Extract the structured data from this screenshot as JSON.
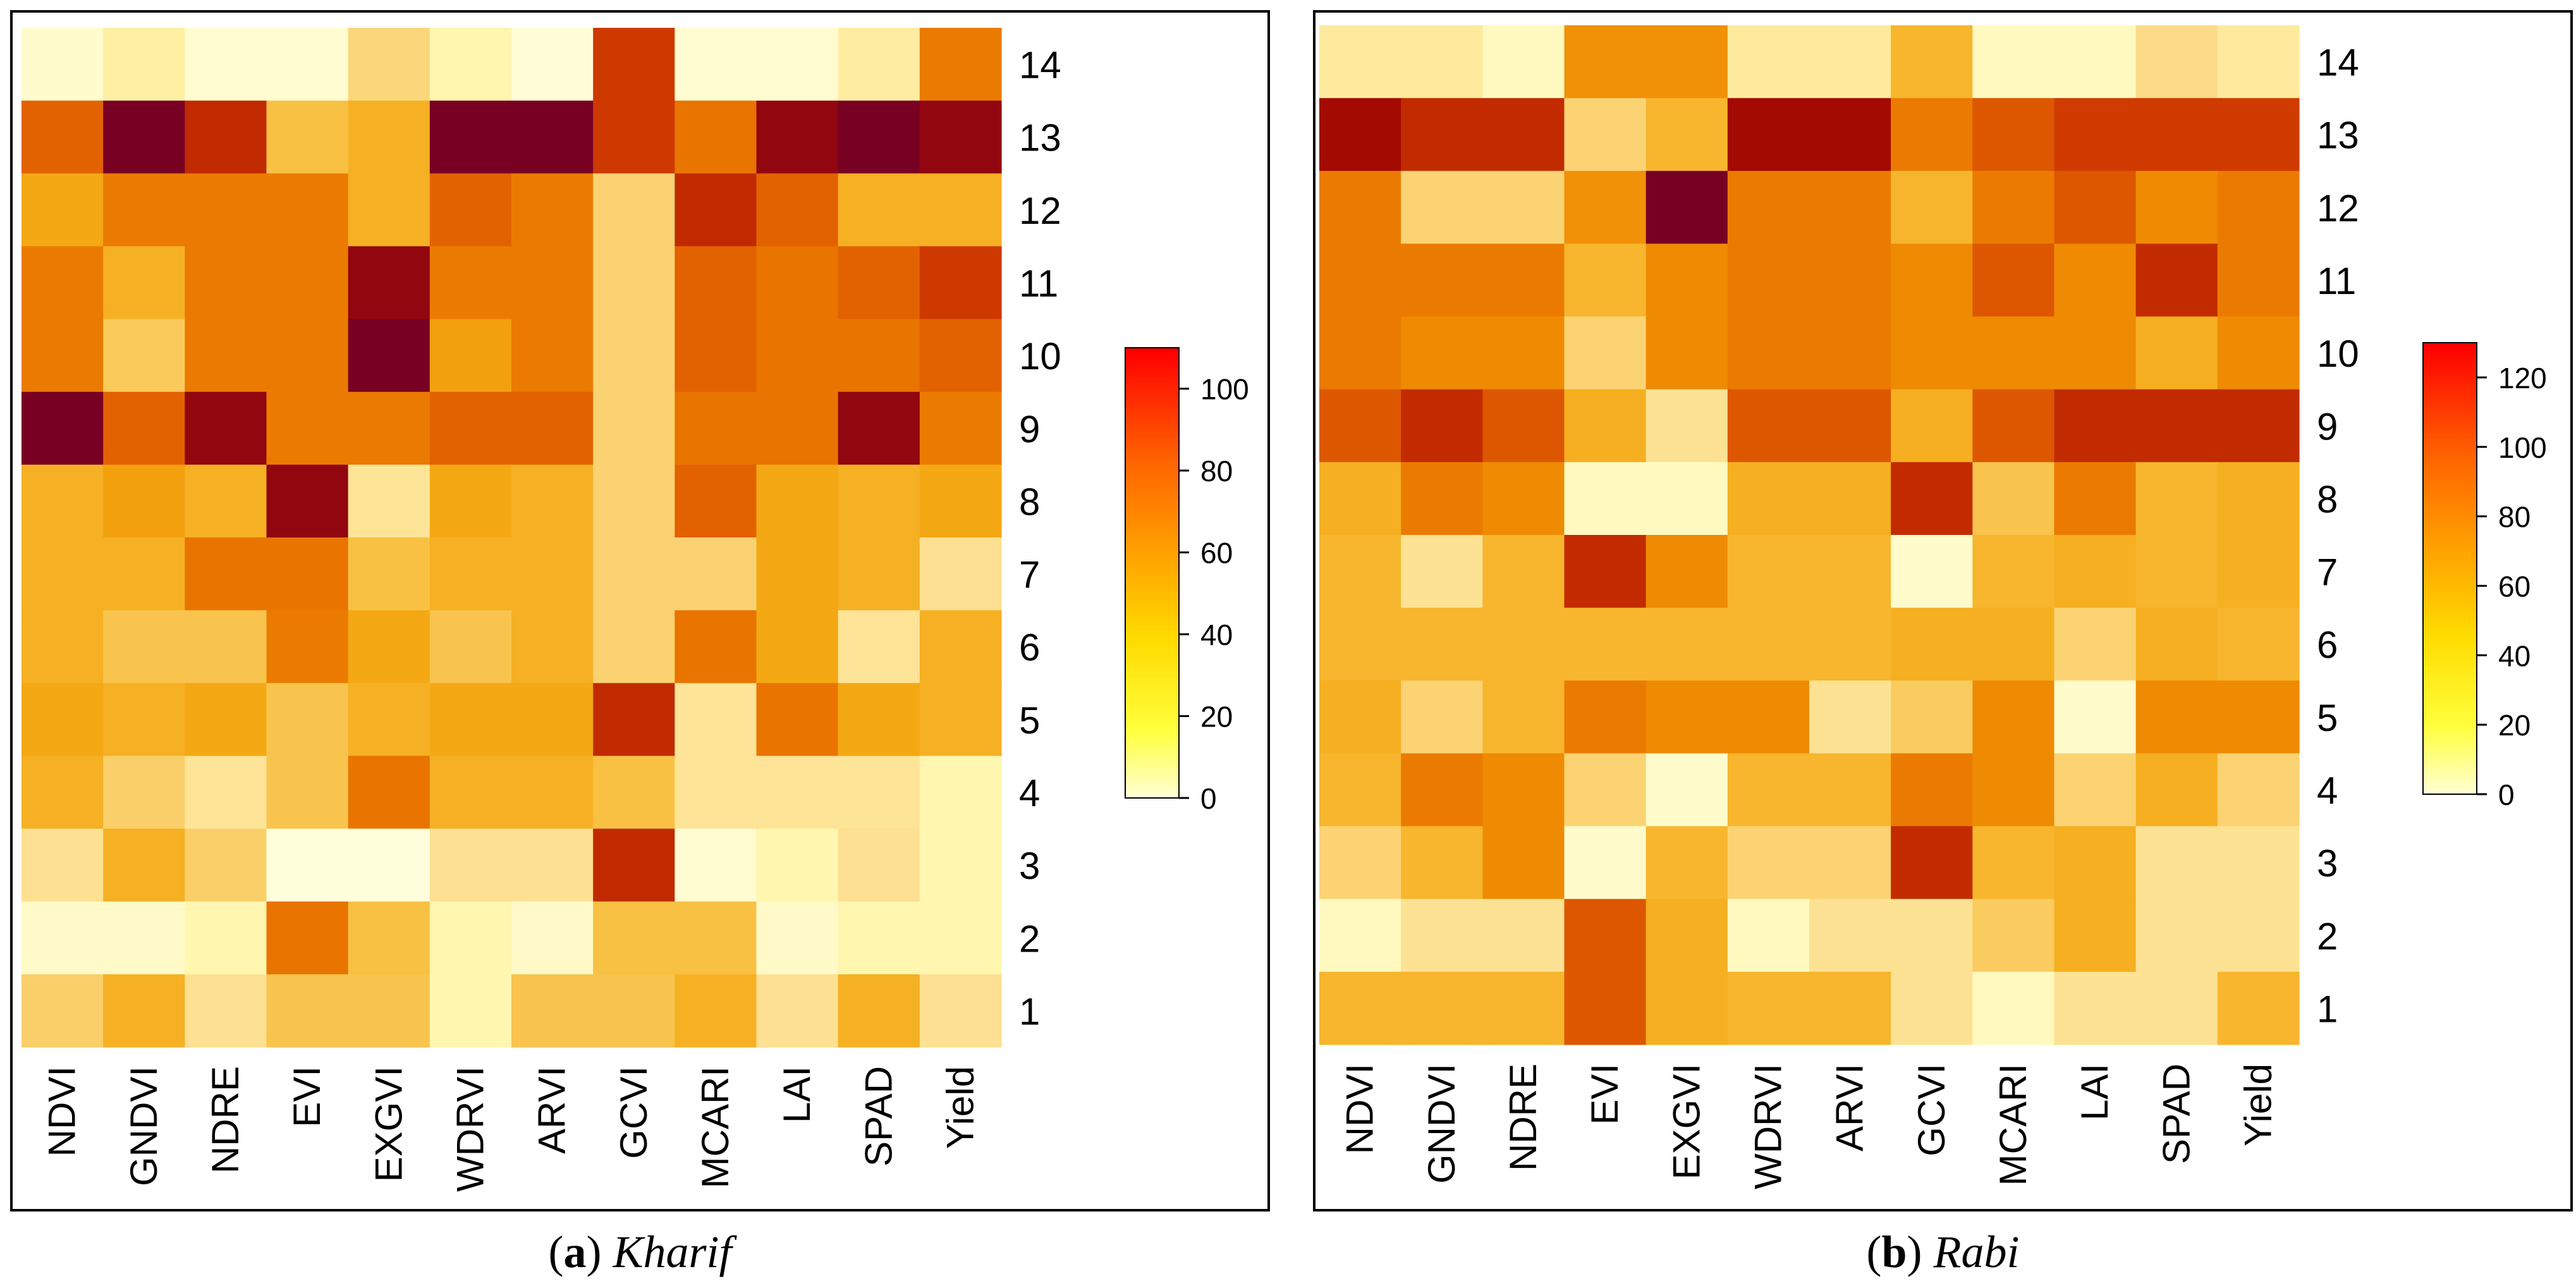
{
  "chart_data": [
    {
      "type": "heatmap",
      "caption_letter": "a",
      "caption_label": "Kharif",
      "x_categories": [
        "NDVI",
        "GNDVI",
        "NDRE",
        "EVI",
        "EXGVI",
        "WDRVI",
        "ARVI",
        "GCVI",
        "MCARI",
        "LAI",
        "SPAD",
        "Yield"
      ],
      "y_categories": [
        "14",
        "13",
        "12",
        "11",
        "10",
        "9",
        "8",
        "7",
        "6",
        "5",
        "4",
        "3",
        "2",
        "1"
      ],
      "values": [
        [
          4,
          14,
          3,
          3,
          28,
          10,
          2,
          92,
          3,
          3,
          15,
          72
        ],
        [
          82,
          122,
          95,
          40,
          50,
          122,
          122,
          92,
          75,
          105,
          115,
          105
        ],
        [
          55,
          72,
          72,
          72,
          50,
          82,
          72,
          30,
          95,
          82,
          50,
          50
        ],
        [
          72,
          50,
          72,
          72,
          105,
          72,
          72,
          30,
          82,
          75,
          82,
          92
        ],
        [
          72,
          35,
          72,
          72,
          115,
          58,
          72,
          30,
          82,
          75,
          75,
          82
        ],
        [
          122,
          82,
          105,
          72,
          72,
          82,
          82,
          30,
          75,
          75,
          105,
          72
        ],
        [
          50,
          58,
          50,
          105,
          20,
          55,
          50,
          30,
          82,
          55,
          50,
          55
        ],
        [
          50,
          50,
          75,
          75,
          40,
          50,
          50,
          30,
          30,
          55,
          50,
          22
        ],
        [
          50,
          38,
          38,
          72,
          55,
          38,
          50,
          30,
          75,
          55,
          20,
          50
        ],
        [
          55,
          50,
          55,
          38,
          50,
          55,
          55,
          95,
          20,
          75,
          55,
          50
        ],
        [
          50,
          32,
          20,
          38,
          75,
          50,
          50,
          40,
          20,
          20,
          20,
          10
        ],
        [
          22,
          50,
          32,
          1,
          1,
          22,
          22,
          95,
          3,
          10,
          22,
          10
        ],
        [
          5,
          5,
          10,
          75,
          40,
          10,
          5,
          40,
          40,
          5,
          10,
          10
        ],
        [
          32,
          50,
          22,
          38,
          38,
          10,
          38,
          38,
          50,
          22,
          50,
          22
        ]
      ],
      "colorbar": {
        "ticks": [
          0,
          20,
          40,
          60,
          80,
          100
        ],
        "range": [
          0,
          110
        ]
      }
    },
    {
      "type": "heatmap",
      "caption_letter": "b",
      "caption_label": "Rabi",
      "x_categories": [
        "NDVI",
        "GNDVI",
        "NDRE",
        "EVI",
        "EXGVI",
        "WDRVI",
        "ARVI",
        "GCVI",
        "MCARI",
        "LAI",
        "SPAD",
        "Yield"
      ],
      "y_categories": [
        "14",
        "13",
        "12",
        "11",
        "10",
        "9",
        "8",
        "7",
        "6",
        "5",
        "4",
        "3",
        "2",
        "1"
      ],
      "values": [
        [
          20,
          20,
          8,
          75,
          75,
          20,
          20,
          55,
          8,
          8,
          30,
          20
        ],
        [
          120,
          112,
          112,
          35,
          55,
          120,
          120,
          85,
          100,
          108,
          108,
          108
        ],
        [
          85,
          35,
          35,
          75,
          136,
          85,
          85,
          55,
          85,
          100,
          78,
          85
        ],
        [
          85,
          85,
          85,
          55,
          78,
          85,
          85,
          78,
          100,
          78,
          112,
          85
        ],
        [
          85,
          78,
          78,
          35,
          78,
          85,
          85,
          78,
          78,
          78,
          60,
          78
        ],
        [
          100,
          112,
          100,
          60,
          25,
          100,
          100,
          60,
          100,
          112,
          112,
          112
        ],
        [
          60,
          85,
          78,
          8,
          8,
          60,
          60,
          112,
          45,
          85,
          55,
          60
        ],
        [
          55,
          25,
          55,
          112,
          78,
          55,
          55,
          5,
          55,
          60,
          55,
          60
        ],
        [
          55,
          55,
          55,
          55,
          55,
          55,
          55,
          60,
          60,
          35,
          60,
          55
        ],
        [
          60,
          35,
          55,
          85,
          78,
          78,
          25,
          40,
          78,
          5,
          78,
          78
        ],
        [
          55,
          85,
          78,
          35,
          5,
          55,
          55,
          85,
          78,
          35,
          60,
          35
        ],
        [
          35,
          55,
          78,
          5,
          55,
          35,
          35,
          112,
          55,
          60,
          25,
          25
        ],
        [
          8,
          25,
          25,
          100,
          60,
          8,
          25,
          25,
          40,
          60,
          25,
          25
        ],
        [
          55,
          55,
          55,
          100,
          60,
          55,
          55,
          25,
          8,
          25,
          25,
          55
        ]
      ],
      "colorbar": {
        "ticks": [
          0,
          20,
          40,
          60,
          80,
          100,
          120
        ],
        "range": [
          0,
          130
        ]
      }
    }
  ]
}
